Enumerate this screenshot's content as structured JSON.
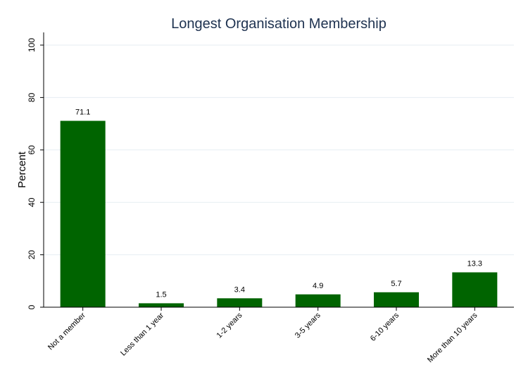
{
  "chart_data": {
    "type": "bar",
    "title": "Longest Organisation Membership",
    "xlabel": "",
    "ylabel": "Percent",
    "categories": [
      "Not a member",
      "Less than 1 year",
      "1-2 years",
      "3-5 years",
      "6-10 years",
      "More than 10 years"
    ],
    "values": [
      71.1,
      1.5,
      3.4,
      4.9,
      5.7,
      13.3
    ],
    "data_labels": [
      "71.1",
      "1.5",
      "3.4",
      "4.9",
      "5.7",
      "13.3"
    ],
    "ylim": [
      0,
      100
    ],
    "yticks": [
      0,
      20,
      40,
      60,
      80,
      100
    ],
    "ytick_labels": [
      "0",
      "20",
      "40",
      "60",
      "80",
      "100"
    ],
    "grid": true,
    "legend": "none",
    "bar_color": "#006400"
  }
}
